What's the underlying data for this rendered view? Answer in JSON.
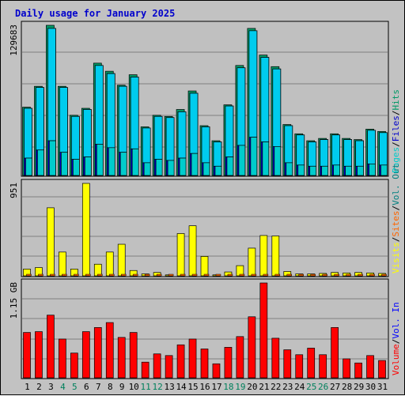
{
  "title": "Daily usage for January 2025",
  "colors": {
    "hits": "#009966",
    "files": "#0000cc",
    "pages": "#00cccc",
    "visits": "#ffff00",
    "sites": "#ff6600",
    "kbytes_out": "#008080",
    "kbytes_in": "#0000ff",
    "volume": "#ff0000",
    "sep": "#000000",
    "weekend": "#00805c",
    "weekday": "#000000"
  },
  "chart_data": [
    {
      "type": "bar",
      "scale_label": "129683",
      "ylim": [
        0,
        129683
      ],
      "legend": [
        {
          "text": "Pages",
          "color": "#00cccc"
        },
        {
          "text": "/",
          "color": "#000000"
        },
        {
          "text": "Files",
          "color": "#0000cc"
        },
        {
          "text": "/",
          "color": "#000000"
        },
        {
          "text": "Hits",
          "color": "#009966"
        }
      ],
      "categories": [
        "1",
        "2",
        "3",
        "4",
        "5",
        "6",
        "7",
        "8",
        "9",
        "10",
        "11",
        "12",
        "13",
        "14",
        "15",
        "16",
        "17",
        "18",
        "19",
        "20",
        "21",
        "22",
        "23",
        "24",
        "25",
        "26",
        "27",
        "28",
        "29",
        "30",
        "31"
      ],
      "series": [
        {
          "key": "hits",
          "values": [
            59000,
            77000,
            129683,
            77000,
            52000,
            58000,
            97000,
            90000,
            78000,
            87000,
            42000,
            52000,
            51000,
            57000,
            73000,
            43000,
            30000,
            61000,
            95000,
            127000,
            104000,
            94000,
            44000,
            36000,
            30000,
            32000,
            36000,
            32000,
            31000,
            40000,
            38000
          ]
        },
        {
          "key": "files",
          "values": [
            58000,
            76000,
            127000,
            76000,
            51000,
            57000,
            95000,
            88000,
            77000,
            85000,
            41000,
            51000,
            50000,
            55000,
            71000,
            42000,
            29000,
            60000,
            93000,
            125000,
            102000,
            92000,
            43000,
            35000,
            29000,
            31000,
            35000,
            31000,
            30000,
            39000,
            37000
          ]
        },
        {
          "key": "pages",
          "values": [
            15000,
            22000,
            30000,
            20000,
            14000,
            16000,
            27000,
            24000,
            20000,
            23000,
            11000,
            14000,
            13000,
            15000,
            19000,
            11000,
            8000,
            16000,
            26000,
            33000,
            29000,
            25000,
            11000,
            9000,
            8000,
            8000,
            9000,
            8000,
            8000,
            10000,
            9000
          ]
        }
      ]
    },
    {
      "type": "bar",
      "scale_label": "951",
      "ylim": [
        0,
        951
      ],
      "legend": [
        {
          "text": "Visits",
          "color": "#ffff00"
        },
        {
          "text": "/",
          "color": "#000000"
        },
        {
          "text": "Sites",
          "color": "#ff6600"
        },
        {
          "text": "/",
          "color": "#000000"
        },
        {
          "text": "Vol. Out",
          "color": "#008080"
        }
      ],
      "categories": [
        "1",
        "2",
        "3",
        "4",
        "5",
        "6",
        "7",
        "8",
        "9",
        "10",
        "11",
        "12",
        "13",
        "14",
        "15",
        "16",
        "17",
        "18",
        "19",
        "20",
        "21",
        "22",
        "23",
        "24",
        "25",
        "26",
        "27",
        "28",
        "29",
        "30",
        "31"
      ],
      "series": [
        {
          "key": "visits",
          "values": [
            70,
            85,
            700,
            245,
            70,
            951,
            120,
            245,
            325,
            55,
            20,
            35,
            10,
            435,
            515,
            200,
            10,
            40,
            105,
            285,
            415,
            410,
            45,
            20,
            20,
            25,
            35,
            30,
            35,
            30,
            25
          ]
        },
        {
          "key": "sites",
          "values": [
            8,
            10,
            12,
            10,
            8,
            14,
            11,
            10,
            10,
            9,
            7,
            8,
            6,
            10,
            12,
            9,
            6,
            8,
            10,
            12,
            12,
            11,
            8,
            7,
            7,
            7,
            8,
            7,
            7,
            8,
            7
          ]
        }
      ]
    },
    {
      "type": "bar",
      "scale_label": "1.15 GB",
      "ylim": [
        0,
        1.15
      ],
      "legend": [
        {
          "text": "Volume",
          "color": "#ff0000"
        },
        {
          "text": "/",
          "color": "#000000"
        },
        {
          "text": "Vol. In",
          "color": "#0000ff"
        }
      ],
      "categories": [
        "1",
        "2",
        "3",
        "4",
        "5",
        "6",
        "7",
        "8",
        "9",
        "10",
        "11",
        "12",
        "13",
        "14",
        "15",
        "16",
        "17",
        "18",
        "19",
        "20",
        "21",
        "22",
        "23",
        "24",
        "25",
        "26",
        "27",
        "28",
        "29",
        "30",
        "31"
      ],
      "series": [
        {
          "key": "volume",
          "values": [
            0.55,
            0.56,
            0.76,
            0.47,
            0.3,
            0.56,
            0.61,
            0.67,
            0.49,
            0.55,
            0.19,
            0.29,
            0.27,
            0.4,
            0.47,
            0.35,
            0.17,
            0.37,
            0.5,
            0.74,
            1.15,
            0.48,
            0.34,
            0.28,
            0.36,
            0.28,
            0.61,
            0.23,
            0.18,
            0.27,
            0.21
          ]
        }
      ]
    }
  ],
  "x_labels": [
    {
      "text": "1",
      "weekend": false
    },
    {
      "text": "2",
      "weekend": false
    },
    {
      "text": "3",
      "weekend": false
    },
    {
      "text": "4",
      "weekend": true
    },
    {
      "text": "5",
      "weekend": true
    },
    {
      "text": "6",
      "weekend": false
    },
    {
      "text": "7",
      "weekend": false
    },
    {
      "text": "8",
      "weekend": false
    },
    {
      "text": "9",
      "weekend": false
    },
    {
      "text": "10",
      "weekend": false
    },
    {
      "text": "11",
      "weekend": true
    },
    {
      "text": "12",
      "weekend": true
    },
    {
      "text": "13",
      "weekend": false
    },
    {
      "text": "14",
      "weekend": false
    },
    {
      "text": "15",
      "weekend": false
    },
    {
      "text": "16",
      "weekend": false
    },
    {
      "text": "17",
      "weekend": false
    },
    {
      "text": "18",
      "weekend": true
    },
    {
      "text": "19",
      "weekend": true
    },
    {
      "text": "20",
      "weekend": false
    },
    {
      "text": "21",
      "weekend": false
    },
    {
      "text": "22",
      "weekend": false
    },
    {
      "text": "23",
      "weekend": false
    },
    {
      "text": "24",
      "weekend": false
    },
    {
      "text": "25",
      "weekend": true
    },
    {
      "text": "26",
      "weekend": true
    },
    {
      "text": "27",
      "weekend": false
    },
    {
      "text": "28",
      "weekend": false
    },
    {
      "text": "29",
      "weekend": false
    },
    {
      "text": "30",
      "weekend": false
    },
    {
      "text": "31",
      "weekend": false
    }
  ]
}
